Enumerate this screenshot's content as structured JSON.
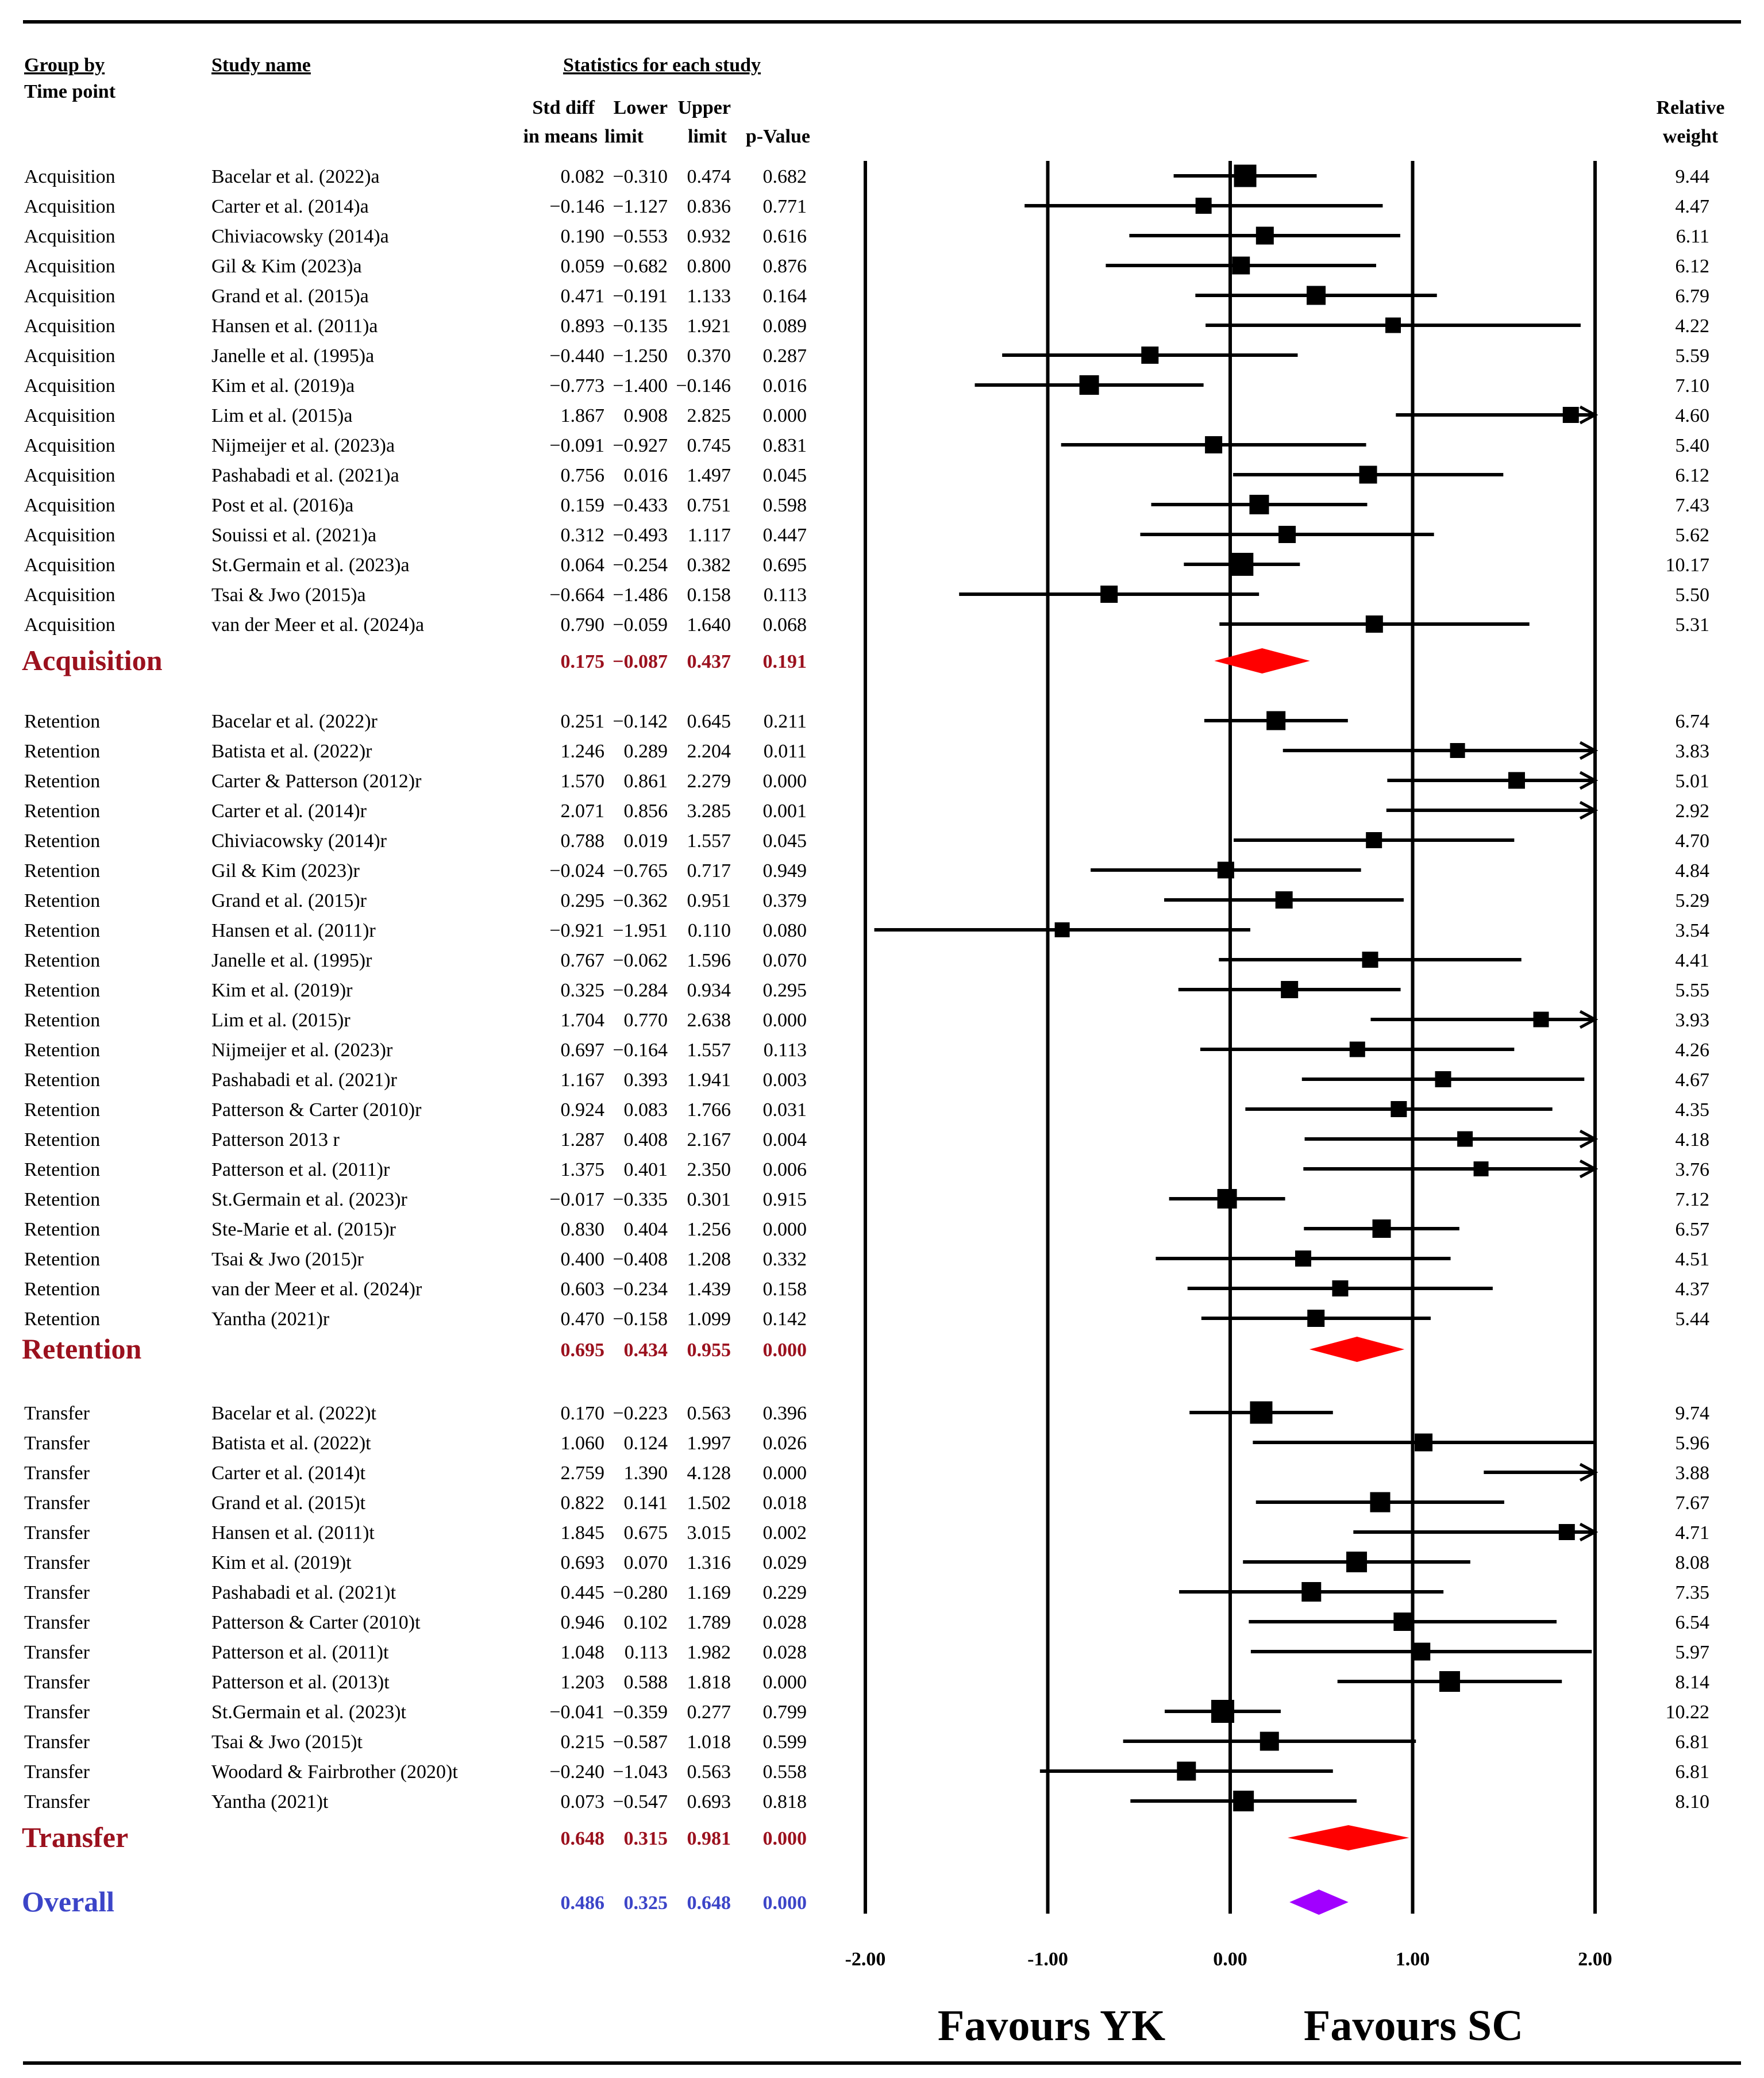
{
  "chart_data": {
    "type": "forest",
    "header": {
      "group_by": "Group by",
      "time_point": "Time point",
      "study_name": "Study name",
      "stats_title": "Statistics for each study",
      "col_std_line1": "Std diff",
      "col_std_line2": "in means",
      "col_lower_line1": "Lower",
      "col_lower_line2": "limit",
      "col_upper_line1": "Upper",
      "col_upper_line2": "limit",
      "col_p": "p-Value",
      "weight_line1": "Relative",
      "weight_line2": "weight"
    },
    "x_axis": {
      "range": [
        -2,
        2
      ],
      "ticks": [
        -2,
        -1,
        0,
        1,
        2
      ],
      "tick_labels": [
        "-2.00",
        "-1.00",
        "0.00",
        "1.00",
        "2.00"
      ],
      "left_label": "Favours YK",
      "right_label": "Favours SC"
    },
    "groups": [
      {
        "name": "Acquisition",
        "studies": [
          {
            "group": "Acquisition",
            "study": "Bacelar et al. (2022)a",
            "es": 0.082,
            "lower": -0.31,
            "upper": 0.474,
            "p": "0.682",
            "es_text": "0.082",
            "lower_text": "−0.310",
            "upper_text": "0.474",
            "weight": "9.44"
          },
          {
            "group": "Acquisition",
            "study": "Carter et al. (2014)a",
            "es": -0.146,
            "lower": -1.127,
            "upper": 0.836,
            "p": "0.771",
            "es_text": "−0.146",
            "lower_text": "−1.127",
            "upper_text": "0.836",
            "weight": "4.47"
          },
          {
            "group": "Acquisition",
            "study": "Chiviacowsky (2014)a",
            "es": 0.19,
            "lower": -0.553,
            "upper": 0.932,
            "p": "0.616",
            "es_text": "0.190",
            "lower_text": "−0.553",
            "upper_text": "0.932",
            "weight": "6.11"
          },
          {
            "group": "Acquisition",
            "study": "Gil & Kim (2023)a",
            "es": 0.059,
            "lower": -0.682,
            "upper": 0.8,
            "p": "0.876",
            "es_text": "0.059",
            "lower_text": "−0.682",
            "upper_text": "0.800",
            "weight": "6.12"
          },
          {
            "group": "Acquisition",
            "study": "Grand et al. (2015)a",
            "es": 0.471,
            "lower": -0.191,
            "upper": 1.133,
            "p": "0.164",
            "es_text": "0.471",
            "lower_text": "−0.191",
            "upper_text": "1.133",
            "weight": "6.79"
          },
          {
            "group": "Acquisition",
            "study": "Hansen et al. (2011)a",
            "es": 0.893,
            "lower": -0.135,
            "upper": 1.921,
            "p": "0.089",
            "es_text": "0.893",
            "lower_text": "−0.135",
            "upper_text": "1.921",
            "weight": "4.22"
          },
          {
            "group": "Acquisition",
            "study": "Janelle et al. (1995)a",
            "es": -0.44,
            "lower": -1.25,
            "upper": 0.37,
            "p": "0.287",
            "es_text": "−0.440",
            "lower_text": "−1.250",
            "upper_text": "0.370",
            "weight": "5.59"
          },
          {
            "group": "Acquisition",
            "study": "Kim et al. (2019)a",
            "es": -0.773,
            "lower": -1.4,
            "upper": -0.146,
            "p": "0.016",
            "es_text": "−0.773",
            "lower_text": "−1.400",
            "upper_text": "−0.146",
            "weight": "7.10"
          },
          {
            "group": "Acquisition",
            "study": "Lim et al. (2015)a",
            "es": 1.867,
            "lower": 0.908,
            "upper": 2.825,
            "p": "0.000",
            "es_text": "1.867",
            "lower_text": "0.908",
            "upper_text": "2.825",
            "weight": "4.60"
          },
          {
            "group": "Acquisition",
            "study": "Nijmeijer et al. (2023)a",
            "es": -0.091,
            "lower": -0.927,
            "upper": 0.745,
            "p": "0.831",
            "es_text": "−0.091",
            "lower_text": "−0.927",
            "upper_text": "0.745",
            "weight": "5.40"
          },
          {
            "group": "Acquisition",
            "study": "Pashabadi et al. (2021)a",
            "es": 0.756,
            "lower": 0.016,
            "upper": 1.497,
            "p": "0.045",
            "es_text": "0.756",
            "lower_text": "0.016",
            "upper_text": "1.497",
            "weight": "6.12"
          },
          {
            "group": "Acquisition",
            "study": "Post et al. (2016)a",
            "es": 0.159,
            "lower": -0.433,
            "upper": 0.751,
            "p": "0.598",
            "es_text": "0.159",
            "lower_text": "−0.433",
            "upper_text": "0.751",
            "weight": "7.43"
          },
          {
            "group": "Acquisition",
            "study": "Souissi et al. (2021)a",
            "es": 0.312,
            "lower": -0.493,
            "upper": 1.117,
            "p": "0.447",
            "es_text": "0.312",
            "lower_text": "−0.493",
            "upper_text": "1.117",
            "weight": "5.62"
          },
          {
            "group": "Acquisition",
            "study": "St.Germain et al. (2023)a",
            "es": 0.064,
            "lower": -0.254,
            "upper": 0.382,
            "p": "0.695",
            "es_text": "0.064",
            "lower_text": "−0.254",
            "upper_text": "0.382",
            "weight": "10.17"
          },
          {
            "group": "Acquisition",
            "study": "Tsai & Jwo (2015)a",
            "es": -0.664,
            "lower": -1.486,
            "upper": 0.158,
            "p": "0.113",
            "es_text": "−0.664",
            "lower_text": "−1.486",
            "upper_text": "0.158",
            "weight": "5.50"
          },
          {
            "group": "Acquisition",
            "study": "van der Meer et al. (2024)a",
            "es": 0.79,
            "lower": -0.059,
            "upper": 1.64,
            "p": "0.068",
            "es_text": "0.790",
            "lower_text": "−0.059",
            "upper_text": "1.640",
            "weight": "5.31"
          }
        ],
        "summary": {
          "label": "Acquisition",
          "es": 0.175,
          "lower": -0.087,
          "upper": 0.437,
          "p": "0.191",
          "es_text": "0.175",
          "lower_text": "−0.087",
          "upper_text": "0.437"
        }
      },
      {
        "name": "Retention",
        "studies": [
          {
            "group": "Retention",
            "study": "Bacelar et al. (2022)r",
            "es": 0.251,
            "lower": -0.142,
            "upper": 0.645,
            "p": "0.211",
            "es_text": "0.251",
            "lower_text": "−0.142",
            "upper_text": "0.645",
            "weight": "6.74"
          },
          {
            "group": "Retention",
            "study": "Batista et al. (2022)r",
            "es": 1.246,
            "lower": 0.289,
            "upper": 2.204,
            "p": "0.011",
            "es_text": "1.246",
            "lower_text": "0.289",
            "upper_text": "2.204",
            "weight": "3.83"
          },
          {
            "group": "Retention",
            "study": "Carter & Patterson (2012)r",
            "es": 1.57,
            "lower": 0.861,
            "upper": 2.279,
            "p": "0.000",
            "es_text": "1.570",
            "lower_text": "0.861",
            "upper_text": "2.279",
            "weight": "5.01"
          },
          {
            "group": "Retention",
            "study": "Carter et al. (2014)r",
            "es": 2.071,
            "lower": 0.856,
            "upper": 3.285,
            "p": "0.001",
            "es_text": "2.071",
            "lower_text": "0.856",
            "upper_text": "3.285",
            "weight": "2.92"
          },
          {
            "group": "Retention",
            "study": "Chiviacowsky (2014)r",
            "es": 0.788,
            "lower": 0.019,
            "upper": 1.557,
            "p": "0.045",
            "es_text": "0.788",
            "lower_text": "0.019",
            "upper_text": "1.557",
            "weight": "4.70"
          },
          {
            "group": "Retention",
            "study": "Gil & Kim (2023)r",
            "es": -0.024,
            "lower": -0.765,
            "upper": 0.717,
            "p": "0.949",
            "es_text": "−0.024",
            "lower_text": "−0.765",
            "upper_text": "0.717",
            "weight": "4.84"
          },
          {
            "group": "Retention",
            "study": "Grand et al. (2015)r",
            "es": 0.295,
            "lower": -0.362,
            "upper": 0.951,
            "p": "0.379",
            "es_text": "0.295",
            "lower_text": "−0.362",
            "upper_text": "0.951",
            "weight": "5.29"
          },
          {
            "group": "Retention",
            "study": "Hansen et al. (2011)r",
            "es": -0.921,
            "lower": -1.951,
            "upper": 0.11,
            "p": "0.080",
            "es_text": "−0.921",
            "lower_text": "−1.951",
            "upper_text": "0.110",
            "weight": "3.54"
          },
          {
            "group": "Retention",
            "study": "Janelle et al. (1995)r",
            "es": 0.767,
            "lower": -0.062,
            "upper": 1.596,
            "p": "0.070",
            "es_text": "0.767",
            "lower_text": "−0.062",
            "upper_text": "1.596",
            "weight": "4.41"
          },
          {
            "group": "Retention",
            "study": "Kim et al. (2019)r",
            "es": 0.325,
            "lower": -0.284,
            "upper": 0.934,
            "p": "0.295",
            "es_text": "0.325",
            "lower_text": "−0.284",
            "upper_text": "0.934",
            "weight": "5.55"
          },
          {
            "group": "Retention",
            "study": "Lim et al. (2015)r",
            "es": 1.704,
            "lower": 0.77,
            "upper": 2.638,
            "p": "0.000",
            "es_text": "1.704",
            "lower_text": "0.770",
            "upper_text": "2.638",
            "weight": "3.93"
          },
          {
            "group": "Retention",
            "study": "Nijmeijer et al. (2023)r",
            "es": 0.697,
            "lower": -0.164,
            "upper": 1.557,
            "p": "0.113",
            "es_text": "0.697",
            "lower_text": "−0.164",
            "upper_text": "1.557",
            "weight": "4.26"
          },
          {
            "group": "Retention",
            "study": "Pashabadi et al. (2021)r",
            "es": 1.167,
            "lower": 0.393,
            "upper": 1.941,
            "p": "0.003",
            "es_text": "1.167",
            "lower_text": "0.393",
            "upper_text": "1.941",
            "weight": "4.67"
          },
          {
            "group": "Retention",
            "study": "Patterson & Carter (2010)r",
            "es": 0.924,
            "lower": 0.083,
            "upper": 1.766,
            "p": "0.031",
            "es_text": "0.924",
            "lower_text": "0.083",
            "upper_text": "1.766",
            "weight": "4.35"
          },
          {
            "group": "Retention",
            "study": "Patterson 2013 r",
            "es": 1.287,
            "lower": 0.408,
            "upper": 2.167,
            "p": "0.004",
            "es_text": "1.287",
            "lower_text": "0.408",
            "upper_text": "2.167",
            "weight": "4.18"
          },
          {
            "group": "Retention",
            "study": "Patterson et al. (2011)r",
            "es": 1.375,
            "lower": 0.401,
            "upper": 2.35,
            "p": "0.006",
            "es_text": "1.375",
            "lower_text": "0.401",
            "upper_text": "2.350",
            "weight": "3.76"
          },
          {
            "group": "Retention",
            "study": "St.Germain et al. (2023)r",
            "es": -0.017,
            "lower": -0.335,
            "upper": 0.301,
            "p": "0.915",
            "es_text": "−0.017",
            "lower_text": "−0.335",
            "upper_text": "0.301",
            "weight": "7.12"
          },
          {
            "group": "Retention",
            "study": "Ste-Marie et al. (2015)r",
            "es": 0.83,
            "lower": 0.404,
            "upper": 1.256,
            "p": "0.000",
            "es_text": "0.830",
            "lower_text": "0.404",
            "upper_text": "1.256",
            "weight": "6.57"
          },
          {
            "group": "Retention",
            "study": "Tsai & Jwo (2015)r",
            "es": 0.4,
            "lower": -0.408,
            "upper": 1.208,
            "p": "0.332",
            "es_text": "0.400",
            "lower_text": "−0.408",
            "upper_text": "1.208",
            "weight": "4.51"
          },
          {
            "group": "Retention",
            "study": "van der Meer et al. (2024)r",
            "es": 0.603,
            "lower": -0.234,
            "upper": 1.439,
            "p": "0.158",
            "es_text": "0.603",
            "lower_text": "−0.234",
            "upper_text": "1.439",
            "weight": "4.37"
          },
          {
            "group": "Retention",
            "study": "Yantha (2021)r",
            "es": 0.47,
            "lower": -0.158,
            "upper": 1.099,
            "p": "0.142",
            "es_text": "0.470",
            "lower_text": "−0.158",
            "upper_text": "1.099",
            "weight": "5.44"
          }
        ],
        "summary": {
          "label": "Retention",
          "es": 0.695,
          "lower": 0.434,
          "upper": 0.955,
          "p": "0.000",
          "es_text": "0.695",
          "lower_text": "0.434",
          "upper_text": "0.955"
        }
      },
      {
        "name": "Transfer",
        "studies": [
          {
            "group": "Transfer",
            "study": "Bacelar et al. (2022)t",
            "es": 0.17,
            "lower": -0.223,
            "upper": 0.563,
            "p": "0.396",
            "es_text": "0.170",
            "lower_text": "−0.223",
            "upper_text": "0.563",
            "weight": "9.74"
          },
          {
            "group": "Transfer",
            "study": "Batista et al. (2022)t",
            "es": 1.06,
            "lower": 0.124,
            "upper": 1.997,
            "p": "0.026",
            "es_text": "1.060",
            "lower_text": "0.124",
            "upper_text": "1.997",
            "weight": "5.96"
          },
          {
            "group": "Transfer",
            "study": "Carter et al. (2014)t",
            "es": 2.759,
            "lower": 1.39,
            "upper": 4.128,
            "p": "0.000",
            "es_text": "2.759",
            "lower_text": "1.390",
            "upper_text": "4.128",
            "weight": "3.88"
          },
          {
            "group": "Transfer",
            "study": "Grand et al. (2015)t",
            "es": 0.822,
            "lower": 0.141,
            "upper": 1.502,
            "p": "0.018",
            "es_text": "0.822",
            "lower_text": "0.141",
            "upper_text": "1.502",
            "weight": "7.67"
          },
          {
            "group": "Transfer",
            "study": "Hansen et al. (2011)t",
            "es": 1.845,
            "lower": 0.675,
            "upper": 3.015,
            "p": "0.002",
            "es_text": "1.845",
            "lower_text": "0.675",
            "upper_text": "3.015",
            "weight": "4.71"
          },
          {
            "group": "Transfer",
            "study": "Kim et al. (2019)t",
            "es": 0.693,
            "lower": 0.07,
            "upper": 1.316,
            "p": "0.029",
            "es_text": "0.693",
            "lower_text": "0.070",
            "upper_text": "1.316",
            "weight": "8.08"
          },
          {
            "group": "Transfer",
            "study": "Pashabadi et al. (2021)t",
            "es": 0.445,
            "lower": -0.28,
            "upper": 1.169,
            "p": "0.229",
            "es_text": "0.445",
            "lower_text": "−0.280",
            "upper_text": "1.169",
            "weight": "7.35"
          },
          {
            "group": "Transfer",
            "study": "Patterson & Carter (2010)t",
            "es": 0.946,
            "lower": 0.102,
            "upper": 1.789,
            "p": "0.028",
            "es_text": "0.946",
            "lower_text": "0.102",
            "upper_text": "1.789",
            "weight": "6.54"
          },
          {
            "group": "Transfer",
            "study": "Patterson et al. (2011)t",
            "es": 1.048,
            "lower": 0.113,
            "upper": 1.982,
            "p": "0.028",
            "es_text": "1.048",
            "lower_text": "0.113",
            "upper_text": "1.982",
            "weight": "5.97"
          },
          {
            "group": "Transfer",
            "study": "Patterson et al. (2013)t",
            "es": 1.203,
            "lower": 0.588,
            "upper": 1.818,
            "p": "0.000",
            "es_text": "1.203",
            "lower_text": "0.588",
            "upper_text": "1.818",
            "weight": "8.14"
          },
          {
            "group": "Transfer",
            "study": "St.Germain et al. (2023)t",
            "es": -0.041,
            "lower": -0.359,
            "upper": 0.277,
            "p": "0.799",
            "es_text": "−0.041",
            "lower_text": "−0.359",
            "upper_text": "0.277",
            "weight": "10.22"
          },
          {
            "group": "Transfer",
            "study": "Tsai & Jwo (2015)t",
            "es": 0.215,
            "lower": -0.587,
            "upper": 1.018,
            "p": "0.599",
            "es_text": "0.215",
            "lower_text": "−0.587",
            "upper_text": "1.018",
            "weight": "6.81"
          },
          {
            "group": "Transfer",
            "study": "Woodard & Fairbrother (2020)t",
            "es": -0.24,
            "lower": -1.043,
            "upper": 0.563,
            "p": "0.558",
            "es_text": "−0.240",
            "lower_text": "−1.043",
            "upper_text": "0.563",
            "weight": "6.81"
          },
          {
            "group": "Transfer",
            "study": "Yantha (2021)t",
            "es": 0.073,
            "lower": -0.547,
            "upper": 0.693,
            "p": "0.818",
            "es_text": "0.073",
            "lower_text": "−0.547",
            "upper_text": "0.693",
            "weight": "8.10"
          }
        ],
        "summary": {
          "label": "Transfer",
          "es": 0.648,
          "lower": 0.315,
          "upper": 0.981,
          "p": "0.000",
          "es_text": "0.648",
          "lower_text": "0.315",
          "upper_text": "0.981"
        }
      }
    ],
    "overall": {
      "label": "Overall",
      "es": 0.486,
      "lower": 0.325,
      "upper": 0.648,
      "p": "0.000",
      "es_text": "0.486",
      "lower_text": "0.325",
      "upper_text": "0.648"
    },
    "colors": {
      "text": "#000000",
      "subgroup": "#9b111e",
      "overall": "#3c45c8",
      "diamond_subgroup": "#ff0000",
      "diamond_overall": "#a100ff",
      "marker": "#000000"
    }
  }
}
